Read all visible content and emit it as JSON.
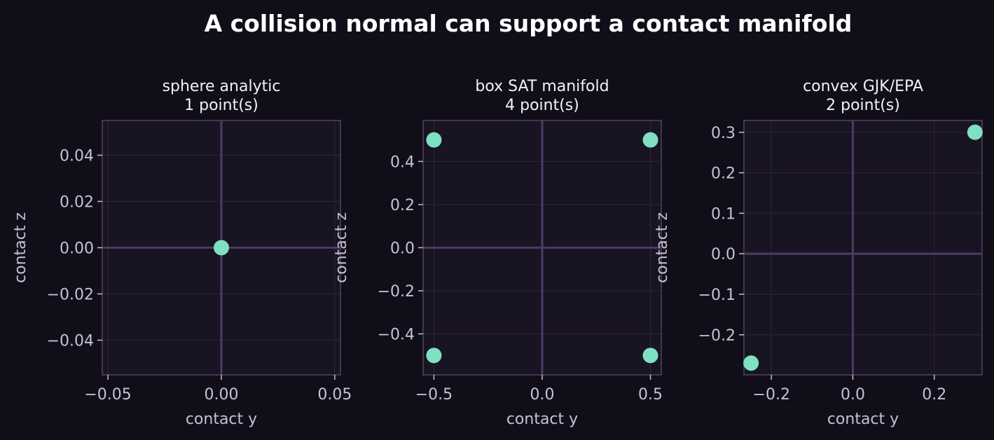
{
  "figure": {
    "title": "A collision normal can support a contact manifold"
  },
  "colors": {
    "background": "#110e1a",
    "axes_background": "#181421",
    "spine": "#4e4466",
    "grid": "#2a2438",
    "zero_line": "#4b3c66",
    "point": "#7fe0c2",
    "text": "#c6c1d4"
  },
  "chart_data": [
    {
      "type": "scatter",
      "title_line1": "sphere analytic",
      "title_line2": "1 point(s)",
      "xlabel": "contact y",
      "ylabel": "contact z",
      "xlim": [
        -0.0525,
        0.0525
      ],
      "ylim": [
        -0.055,
        0.055
      ],
      "xticks": [
        -0.05,
        0.0,
        0.05
      ],
      "xtick_labels": [
        "−0.05",
        "0.00",
        "0.05"
      ],
      "yticks": [
        -0.04,
        -0.02,
        0.0,
        0.02,
        0.04
      ],
      "ytick_labels": [
        "−0.04",
        "−0.02",
        "0.00",
        "0.02",
        "0.04"
      ],
      "grid": true,
      "points": [
        {
          "x": 0.0,
          "y": 0.0
        }
      ]
    },
    {
      "type": "scatter",
      "title_line1": "box SAT manifold",
      "title_line2": "4 point(s)",
      "xlabel": "contact y",
      "ylabel": "contact z",
      "xlim": [
        -0.55,
        0.55
      ],
      "ylim": [
        -0.59,
        0.59
      ],
      "xticks": [
        -0.5,
        0.0,
        0.5
      ],
      "xtick_labels": [
        "−0.5",
        "0.0",
        "0.5"
      ],
      "yticks": [
        -0.4,
        -0.2,
        0.0,
        0.2,
        0.4
      ],
      "ytick_labels": [
        "−0.4",
        "−0.2",
        "0.0",
        "0.2",
        "0.4"
      ],
      "grid": true,
      "points": [
        {
          "x": -0.5,
          "y": 0.5
        },
        {
          "x": 0.5,
          "y": 0.5
        },
        {
          "x": -0.5,
          "y": -0.5
        },
        {
          "x": 0.5,
          "y": -0.5
        }
      ]
    },
    {
      "type": "scatter",
      "title_line1": "convex GJK/EPA",
      "title_line2": "2 point(s)",
      "xlabel": "contact y",
      "ylabel": "contact z",
      "xlim": [
        -0.2675,
        0.3175
      ],
      "ylim": [
        -0.299,
        0.329
      ],
      "xticks": [
        -0.2,
        0.0,
        0.2
      ],
      "xtick_labels": [
        "−0.2",
        "0.0",
        "0.2"
      ],
      "yticks": [
        -0.2,
        -0.1,
        0.0,
        0.1,
        0.2,
        0.3
      ],
      "ytick_labels": [
        "−0.2",
        "−0.1",
        "0.0",
        "0.1",
        "0.2",
        "0.3"
      ],
      "grid": true,
      "points": [
        {
          "x": -0.25,
          "y": -0.27
        },
        {
          "x": 0.3,
          "y": 0.3
        }
      ]
    }
  ]
}
